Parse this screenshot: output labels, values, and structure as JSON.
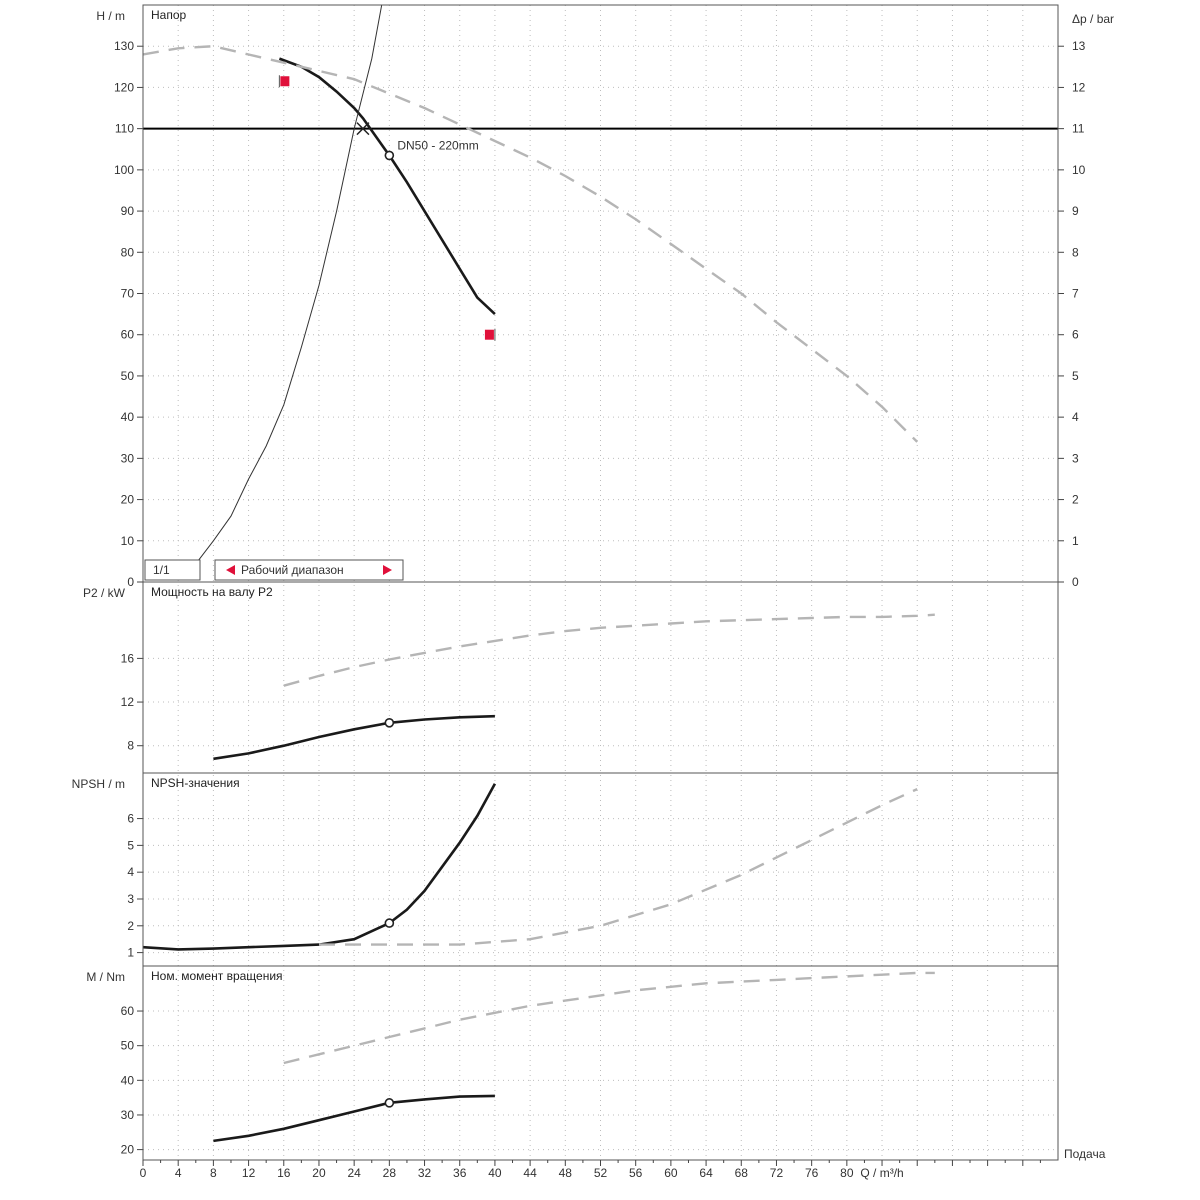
{
  "chart_data": {
    "type": "line",
    "x_axis": {
      "label": "Q / m³/h",
      "footer_label": "Подача",
      "range": [
        0,
        104
      ],
      "ticks": [
        0,
        4,
        8,
        12,
        16,
        20,
        24,
        28,
        32,
        36,
        40,
        44,
        48,
        52,
        56,
        60,
        64,
        68,
        72,
        76,
        80,
        84,
        88,
        92,
        96,
        100
      ],
      "tick_labels": [
        "0",
        "4",
        "8",
        "12",
        "16",
        "20",
        "24",
        "28",
        "32",
        "36",
        "40",
        "44",
        "48",
        "52",
        "56",
        "60",
        "64",
        "68",
        "72",
        "76",
        "80",
        "Q / m³/h"
      ]
    },
    "panels": [
      {
        "id": "head",
        "title": "Напор",
        "ylabel": "H / m",
        "ylim": [
          0,
          140
        ],
        "yticks": [
          "0",
          "10",
          "20",
          "30",
          "40",
          "50",
          "60",
          "70",
          "80",
          "90",
          "100",
          "110",
          "120",
          "130"
        ],
        "ytick_values": [
          0,
          10,
          20,
          30,
          40,
          50,
          60,
          70,
          80,
          90,
          100,
          110,
          120,
          130
        ],
        "y2label": "Δp / bar",
        "y2lim": [
          0,
          14
        ],
        "y2ticks": [
          "0",
          "1",
          "2",
          "3",
          "4",
          "5",
          "6",
          "7",
          "8",
          "9",
          "10",
          "11",
          "12",
          "13"
        ],
        "reference_line_y": 110,
        "duty_point": {
          "x": 28,
          "y": 103.5
        },
        "annotation": "DN50 - 220mm",
        "legend_box": "1/1",
        "operating_range_label": "Рабочий диапазон",
        "series": [
          {
            "style": "solid-bold",
            "points": [
              [
                15.5,
                127
              ],
              [
                18,
                125
              ],
              [
                20,
                122.5
              ],
              [
                22,
                119
              ],
              [
                24,
                115
              ],
              [
                25,
                112.5
              ],
              [
                28,
                103.5
              ],
              [
                30,
                97
              ],
              [
                32,
                90
              ],
              [
                34,
                83
              ],
              [
                36,
                76
              ],
              [
                38,
                69
              ],
              [
                40,
                65
              ]
            ]
          },
          {
            "style": "dashed-gray",
            "points": [
              [
                0,
                128
              ],
              [
                4,
                129.5
              ],
              [
                8,
                130
              ],
              [
                12,
                128
              ],
              [
                16,
                126
              ],
              [
                20,
                124
              ],
              [
                24,
                122
              ],
              [
                28,
                118.5
              ],
              [
                32,
                115
              ],
              [
                36,
                111
              ],
              [
                40,
                107
              ],
              [
                44,
                103
              ],
              [
                48,
                98.5
              ],
              [
                52,
                93.5
              ],
              [
                56,
                88
              ],
              [
                60,
                82
              ],
              [
                64,
                76
              ],
              [
                68,
                70
              ],
              [
                72,
                63
              ],
              [
                76,
                56.5
              ],
              [
                80,
                50
              ],
              [
                84,
                42.5
              ],
              [
                88,
                34
              ]
            ]
          },
          {
            "style": "thin-system",
            "points": [
              [
                5.5,
                3
              ],
              [
                8,
                10
              ],
              [
                10,
                16
              ],
              [
                12,
                25
              ],
              [
                14,
                33
              ],
              [
                16,
                43
              ],
              [
                18,
                57
              ],
              [
                20,
                72
              ],
              [
                22,
                90
              ],
              [
                24,
                110
              ],
              [
                26,
                127
              ],
              [
                28,
                150
              ]
            ]
          }
        ],
        "range_markers": [
          {
            "x": 15.5,
            "y": 121.5
          },
          {
            "x": 40,
            "y": 60
          }
        ]
      },
      {
        "id": "power",
        "title": "Мощность на валу P2",
        "ylabel": "P2 / kW",
        "ylim": [
          5.5,
          23
        ],
        "yticks": [
          "8",
          "12",
          "16"
        ],
        "ytick_values": [
          8,
          12,
          16
        ],
        "duty_point": {
          "x": 28,
          "y": 10.1
        },
        "series": [
          {
            "style": "solid-bold",
            "points": [
              [
                8,
                6.8
              ],
              [
                12,
                7.3
              ],
              [
                16,
                8.0
              ],
              [
                20,
                8.8
              ],
              [
                24,
                9.5
              ],
              [
                28,
                10.1
              ],
              [
                32,
                10.4
              ],
              [
                36,
                10.6
              ],
              [
                40,
                10.7
              ]
            ]
          },
          {
            "style": "dashed-gray",
            "points": [
              [
                16,
                13.5
              ],
              [
                20,
                14.4
              ],
              [
                24,
                15.2
              ],
              [
                28,
                15.9
              ],
              [
                32,
                16.5
              ],
              [
                36,
                17.1
              ],
              [
                40,
                17.6
              ],
              [
                44,
                18.1
              ],
              [
                48,
                18.5
              ],
              [
                52,
                18.8
              ],
              [
                56,
                19.0
              ],
              [
                60,
                19.2
              ],
              [
                64,
                19.4
              ],
              [
                68,
                19.5
              ],
              [
                72,
                19.6
              ],
              [
                76,
                19.7
              ],
              [
                80,
                19.8
              ],
              [
                84,
                19.8
              ],
              [
                88,
                19.9
              ],
              [
                90,
                20
              ]
            ]
          }
        ]
      },
      {
        "id": "npsh",
        "title": "NPSH-значения",
        "ylabel": "NPSH / m",
        "ylim": [
          0.5,
          7.7
        ],
        "yticks": [
          "1",
          "2",
          "3",
          "4",
          "5",
          "6"
        ],
        "ytick_values": [
          1,
          2,
          3,
          4,
          5,
          6
        ],
        "duty_point": {
          "x": 28,
          "y": 2.1
        },
        "series": [
          {
            "style": "solid-bold",
            "points": [
              [
                0,
                1.2
              ],
              [
                4,
                1.12
              ],
              [
                8,
                1.15
              ],
              [
                12,
                1.2
              ],
              [
                16,
                1.25
              ],
              [
                20,
                1.3
              ],
              [
                24,
                1.5
              ],
              [
                28,
                2.1
              ],
              [
                30,
                2.6
              ],
              [
                32,
                3.3
              ],
              [
                34,
                4.2
              ],
              [
                36,
                5.1
              ],
              [
                38,
                6.1
              ],
              [
                40,
                7.3
              ]
            ]
          },
          {
            "style": "dashed-gray",
            "points": [
              [
                20,
                1.3
              ],
              [
                28,
                1.3
              ],
              [
                36,
                1.3
              ],
              [
                44,
                1.5
              ],
              [
                52,
                2.0
              ],
              [
                60,
                2.8
              ],
              [
                68,
                3.9
              ],
              [
                76,
                5.2
              ],
              [
                84,
                6.5
              ],
              [
                88,
                7.1
              ]
            ]
          }
        ]
      },
      {
        "id": "torque",
        "title": "Ном. момент вращения",
        "ylabel": "M / Nm",
        "ylim": [
          17,
          73
        ],
        "yticks": [
          "20",
          "30",
          "40",
          "50",
          "60"
        ],
        "ytick_values": [
          20,
          30,
          40,
          50,
          60
        ],
        "duty_point": {
          "x": 28,
          "y": 33.5
        },
        "series": [
          {
            "style": "solid-bold",
            "points": [
              [
                8,
                22.5
              ],
              [
                12,
                24
              ],
              [
                16,
                26
              ],
              [
                20,
                28.5
              ],
              [
                24,
                31
              ],
              [
                28,
                33.5
              ],
              [
                32,
                34.5
              ],
              [
                36,
                35.3
              ],
              [
                40,
                35.5
              ]
            ]
          },
          {
            "style": "dashed-gray",
            "points": [
              [
                16,
                45
              ],
              [
                20,
                47.5
              ],
              [
                24,
                50
              ],
              [
                28,
                52.5
              ],
              [
                32,
                55
              ],
              [
                36,
                57.5
              ],
              [
                40,
                59.5
              ],
              [
                44,
                61.5
              ],
              [
                48,
                63
              ],
              [
                52,
                64.5
              ],
              [
                56,
                66
              ],
              [
                60,
                67
              ],
              [
                64,
                68
              ],
              [
                68,
                68.5
              ],
              [
                72,
                69
              ],
              [
                76,
                69.5
              ],
              [
                80,
                70
              ],
              [
                84,
                70.5
              ],
              [
                88,
                71
              ],
              [
                90,
                71
              ]
            ]
          }
        ]
      }
    ]
  }
}
